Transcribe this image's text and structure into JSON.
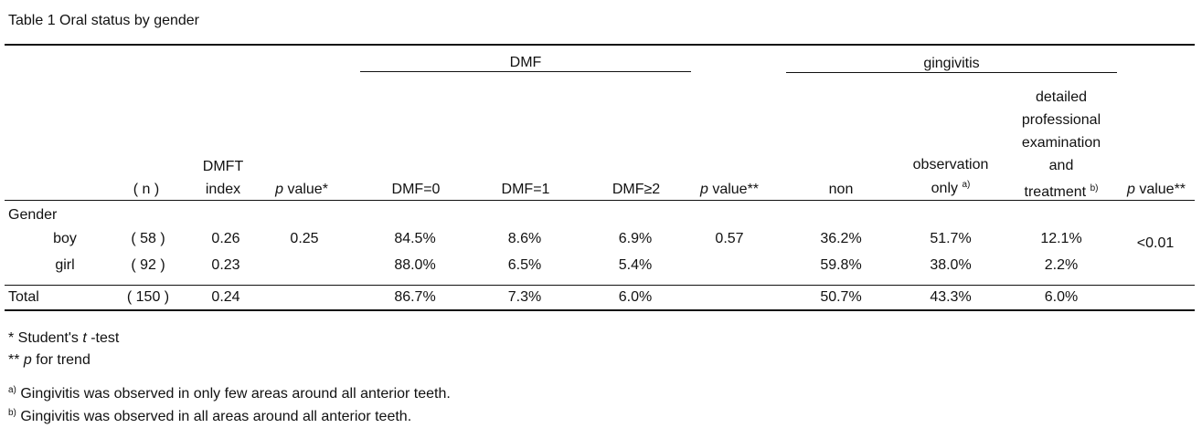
{
  "title": "Table 1  Oral status by gender",
  "groups": {
    "dmf": "DMF",
    "gingivitis": "gingivitis"
  },
  "headers": {
    "n": "( n )",
    "dmft_1": "DMFT",
    "dmft_2": "index",
    "p1_italic": "p",
    "p1_rest": " value*",
    "dmf0": "DMF=0",
    "dmf1": "DMF=1",
    "dmf2": "DMF≥2",
    "p2_italic": "p",
    "p2_rest": " value**",
    "non": "non",
    "obs_1": "observation",
    "obs_2": "only",
    "obs_sup": "a)",
    "det_1": "detailed",
    "det_2": "professional",
    "det_3": "examination",
    "det_4": "and",
    "det_5": "treatment",
    "det_sup": "b)",
    "p3_italic": "p",
    "p3_rest": " value**"
  },
  "section_label": "Gender",
  "rows": [
    {
      "label": "boy",
      "n": "( 58 )",
      "dmft": "0.26",
      "p1": "0.25",
      "dmf0": "84.5%",
      "dmf1": "8.6%",
      "dmf2": "6.9%",
      "p2": "0.57",
      "non": "36.2%",
      "obs": "51.7%",
      "det": "12.1%",
      "p3": "<0.01"
    },
    {
      "label": "girl",
      "n": "( 92 )",
      "dmft": "0.23",
      "p1": "",
      "dmf0": "88.0%",
      "dmf1": "6.5%",
      "dmf2": "5.4%",
      "p2": "",
      "non": "59.8%",
      "obs": "38.0%",
      "det": "2.2%",
      "p3": ""
    }
  ],
  "total": {
    "label": "Total",
    "n": "( 150 )",
    "dmft": "0.24",
    "dmf0": "86.7%",
    "dmf1": "7.3%",
    "dmf2": "6.0%",
    "non": "50.7%",
    "obs": "43.3%",
    "det": "6.0%"
  },
  "footnotes": {
    "f1_pre": "* Student's ",
    "f1_italic": "t",
    "f1_post": " -test",
    "f2_pre": "** ",
    "f2_italic": "p",
    "f2_post": "  for trend",
    "fa_sup": "a)",
    "fa_text": " Gingivitis was observed in only few areas around all anterior teeth.",
    "fb_sup": "b)",
    "fb_text": " Gingivitis was observed in all areas around all anterior teeth."
  }
}
